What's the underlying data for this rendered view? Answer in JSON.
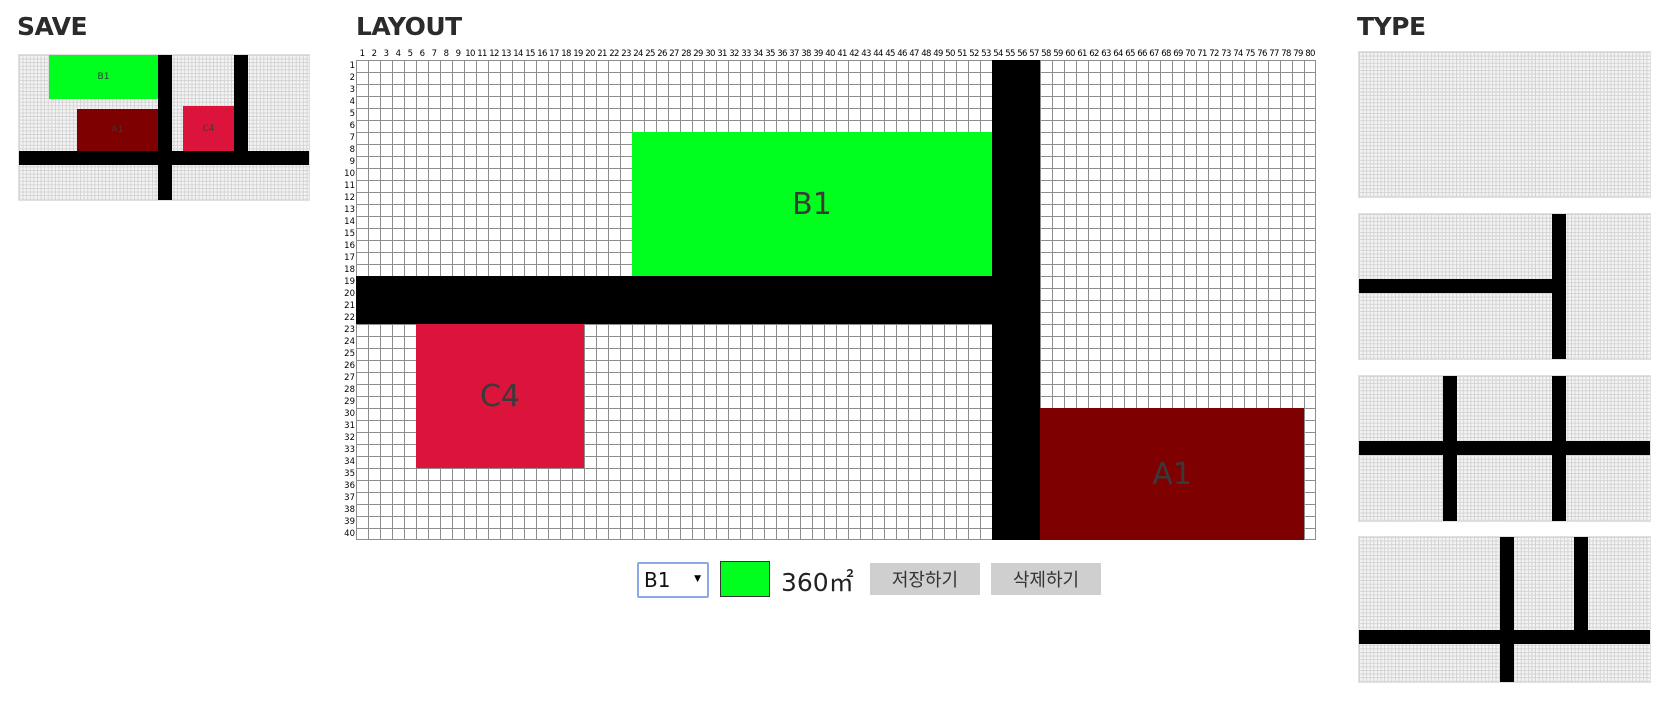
{
  "headings": {
    "save": "SAVE",
    "layout": "LAYOUT",
    "type": "TYPE"
  },
  "grid": {
    "columns": 80,
    "rows": 40
  },
  "plots": [
    {
      "id": "B1",
      "label": "B1",
      "color": "#00ff1e",
      "col_start": 24,
      "col_end": 53,
      "row_start": 7,
      "row_end": 18
    },
    {
      "id": "C4",
      "label": "C4",
      "color": "#dc143c",
      "col_start": 6,
      "col_end": 19,
      "row_start": 23,
      "row_end": 34
    },
    {
      "id": "A1",
      "label": "A1",
      "color": "#7f0000",
      "col_start": 58,
      "col_end": 79,
      "row_start": 30,
      "row_end": 40
    }
  ],
  "roads": [
    {
      "orientation": "horizontal",
      "col_start": 1,
      "col_end": 57,
      "row_start": 19,
      "row_end": 22
    },
    {
      "orientation": "vertical",
      "col_start": 54,
      "col_end": 57,
      "row_start": 1,
      "row_end": 40
    }
  ],
  "saved_layout": {
    "plots": [
      {
        "label": "B1",
        "color": "#00ff1e"
      },
      {
        "label": "A1",
        "color": "#7f0000"
      },
      {
        "label": "C4",
        "color": "#dc143c"
      }
    ]
  },
  "controls": {
    "selected_plot": "B1",
    "selected_color": "#00ff1e",
    "area": "360㎡",
    "save_label": "저장하기",
    "delete_label": "삭제하기"
  },
  "types": [
    {
      "name": "empty"
    },
    {
      "name": "t-junction"
    },
    {
      "name": "double-cross"
    },
    {
      "name": "double-t"
    }
  ]
}
